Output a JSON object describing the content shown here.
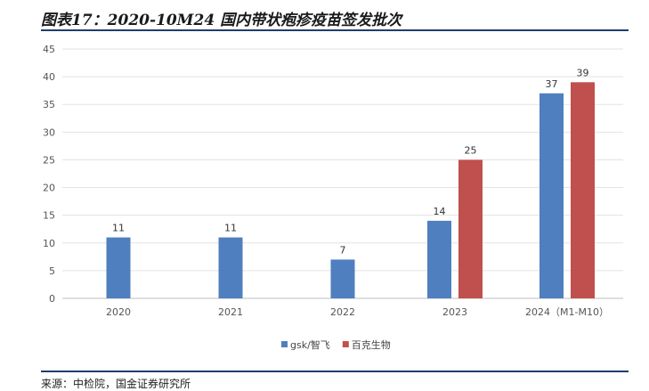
{
  "title": "图表17：2020-10M24 国内带状疱疹疫苗签发批次",
  "source": "来源：中检院，国金证券研究所",
  "chart_data": {
    "type": "bar",
    "categories": [
      "2020",
      "2021",
      "2022",
      "2023",
      "2024（M1-M10）"
    ],
    "series": [
      {
        "name": "gsk/智飞",
        "color": "#4f7fbf",
        "values": [
          11,
          11,
          7,
          14,
          37
        ]
      },
      {
        "name": "百克生物",
        "color": "#c0504d",
        "values": [
          null,
          null,
          null,
          25,
          39
        ]
      }
    ],
    "yticks": [
      "0",
      "5",
      "10",
      "15",
      "20",
      "25",
      "30",
      "35",
      "40",
      "45"
    ],
    "ylim": [
      0,
      45
    ],
    "grid": true,
    "legend": "bottom"
  }
}
